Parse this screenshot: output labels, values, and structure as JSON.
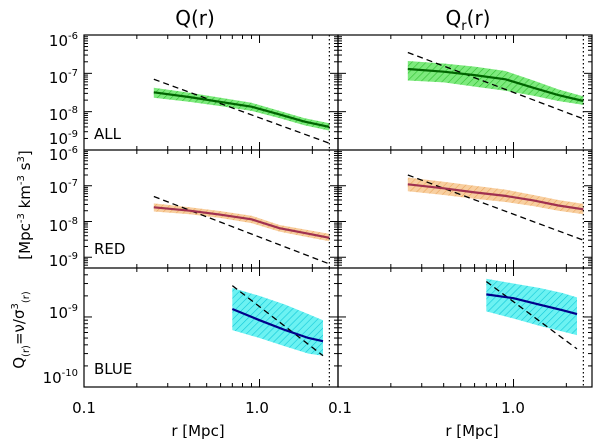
{
  "figure": {
    "column_titles": [
      {
        "base": "Q(r)",
        "sub": ""
      },
      {
        "base": "Q",
        "sub": "r",
        "tail": "(r)"
      }
    ],
    "ylabel_top": {
      "a": "[Mpc",
      "e1": "-3",
      "b": " km",
      "e2": "-3",
      "c": " s",
      "e3": "3",
      "d": "]"
    },
    "ylabel_bottom": {
      "a": "Q",
      "s1": "(r)",
      "b": "=ν/σ",
      "e1": "3",
      "s2": "(r)"
    },
    "xlabel": "r [Mpc]",
    "xtick_labels": [
      "0.1",
      "1.0"
    ],
    "ytick_labels": {
      "row1": [
        {
          "base": "10",
          "exp": "-6"
        },
        {
          "base": "10",
          "exp": "-7"
        },
        {
          "base": "10",
          "exp": "-8"
        },
        {
          "base": "10",
          "exp": "-9"
        }
      ],
      "row2": [
        {
          "base": "10",
          "exp": "-6"
        },
        {
          "base": "10",
          "exp": "-7"
        },
        {
          "base": "10",
          "exp": "-8"
        },
        {
          "base": "10",
          "exp": "-9"
        }
      ],
      "row3": [
        {
          "base": "10",
          "exp": "-9"
        },
        {
          "base": "10",
          "exp": "-10"
        }
      ]
    },
    "row_labels": [
      "ALL",
      "RED",
      "BLUE"
    ]
  },
  "chart_data": [
    {
      "type": "line",
      "panel": "ALL / Q(r)",
      "xscale": "log",
      "yscale": "log",
      "xlim": [
        0.1,
        2.8
      ],
      "ylim": [
        1e-09,
        1e-06
      ],
      "vline": 2.5,
      "band_color": "#4cd94c",
      "line_color": "#006400",
      "x": [
        0.25,
        0.4,
        0.6,
        0.9,
        1.3,
        1.8,
        2.5
      ],
      "y": [
        3.2e-08,
        2.4e-08,
        1.8e-08,
        1.35e-08,
        8.5e-09,
        5.5e-09,
        4e-09
      ],
      "band_low": [
        2.3e-08,
        1.8e-08,
        1.4e-08,
        1.05e-08,
        6.8e-09,
        4.4e-09,
        3.2e-09
      ],
      "band_high": [
        4.2e-08,
        3.1e-08,
        2.3e-08,
        1.7e-08,
        1.05e-08,
        6.8e-09,
        5e-09
      ],
      "fit_x": [
        0.25,
        2.5
      ],
      "fit_y": [
        7e-08,
        1.5e-09
      ]
    },
    {
      "type": "line",
      "panel": "ALL / Qr(r)",
      "xscale": "log",
      "yscale": "log",
      "xlim": [
        0.1,
        2.8
      ],
      "ylim": [
        1e-09,
        1e-06
      ],
      "vline": 2.5,
      "band_color": "#4cd94c",
      "line_color": "#006400",
      "x": [
        0.25,
        0.4,
        0.6,
        0.9,
        1.3,
        1.8,
        2.5
      ],
      "y": [
        1.3e-07,
        1.1e-07,
        9e-08,
        7e-08,
        4.2e-08,
        2.7e-08,
        1.9e-08
      ],
      "band_low": [
        6.5e-08,
        5.8e-08,
        4.5e-08,
        3.5e-08,
        2.6e-08,
        1.9e-08,
        1.5e-08
      ],
      "band_high": [
        2.1e-07,
        1.8e-07,
        1.5e-07,
        1.15e-07,
        6.5e-08,
        3.8e-08,
        2.5e-08
      ],
      "fit_x": [
        0.25,
        2.5
      ],
      "fit_y": [
        3.5e-07,
        6.5e-09
      ]
    },
    {
      "type": "line",
      "panel": "RED / Q(r)",
      "xscale": "log",
      "yscale": "log",
      "xlim": [
        0.1,
        2.8
      ],
      "ylim": [
        5e-10,
        1e-06
      ],
      "vline": 2.5,
      "band_color": "#f5c08a",
      "line_color": "#a03050",
      "x": [
        0.25,
        0.4,
        0.6,
        0.9,
        1.3,
        1.8,
        2.5
      ],
      "y": [
        2.5e-08,
        2e-08,
        1.55e-08,
        1.15e-08,
        6.5e-09,
        4.8e-09,
        3.5e-09
      ],
      "band_low": [
        1.9e-08,
        1.6e-08,
        1.25e-08,
        9e-09,
        5.2e-09,
        3.8e-09,
        2.8e-09
      ],
      "band_high": [
        3.2e-08,
        2.5e-08,
        1.95e-08,
        1.45e-08,
        8e-09,
        6e-09,
        4.5e-09
      ],
      "fit_x": [
        0.25,
        2.5
      ],
      "fit_y": [
        5e-08,
        6.5e-10
      ]
    },
    {
      "type": "line",
      "panel": "RED / Qr(r)",
      "xscale": "log",
      "yscale": "log",
      "xlim": [
        0.1,
        2.8
      ],
      "ylim": [
        5e-10,
        1e-06
      ],
      "vline": 2.5,
      "band_color": "#f5c08a",
      "line_color": "#a03050",
      "x": [
        0.25,
        0.4,
        0.6,
        0.9,
        1.3,
        1.8,
        2.5
      ],
      "y": [
        1.1e-07,
        8.5e-08,
        6.5e-08,
        5.2e-08,
        3.9e-08,
        2.8e-08,
        2.2e-08
      ],
      "band_low": [
        7e-08,
        5.5e-08,
        4.3e-08,
        3.5e-08,
        2.7e-08,
        2e-08,
        1.6e-08
      ],
      "band_high": [
        1.7e-07,
        1.3e-07,
        1e-07,
        7.8e-08,
        5.5e-08,
        4e-08,
        3.1e-08
      ],
      "fit_x": [
        0.25,
        2.5
      ],
      "fit_y": [
        2e-07,
        3e-09
      ]
    },
    {
      "type": "line",
      "panel": "BLUE / Q(r)",
      "xscale": "log",
      "yscale": "log",
      "xlim": [
        0.1,
        2.8
      ],
      "ylim": [
        1e-10,
        5e-09
      ],
      "vline": 2.5,
      "band_color": "#22e8e8",
      "line_color": "#00008b",
      "x": [
        0.7,
        1.0,
        1.4,
        1.9,
        2.3
      ],
      "y": [
        1.3e-09,
        9e-10,
        6.5e-10,
        5e-10,
        4.5e-10
      ],
      "band_low": [
        6.5e-10,
        5e-10,
        3.8e-10,
        3e-10,
        2.8e-10
      ],
      "band_high": [
        2.6e-09,
        2e-09,
        1.5e-09,
        1.1e-09,
        9e-10
      ],
      "fit_x": [
        0.7,
        2.3
      ],
      "fit_y": [
        2.8e-09,
        2.8e-10
      ]
    },
    {
      "type": "line",
      "panel": "BLUE / Qr(r)",
      "xscale": "log",
      "yscale": "log",
      "xlim": [
        0.1,
        2.8
      ],
      "ylim": [
        1e-10,
        5e-09
      ],
      "vline": 2.5,
      "band_color": "#22e8e8",
      "line_color": "#00008b",
      "x": [
        0.7,
        1.0,
        1.4,
        1.9,
        2.3
      ],
      "y": [
        2.1e-09,
        1.85e-09,
        1.5e-09,
        1.25e-09,
        1.1e-09
      ],
      "band_low": [
        1.2e-09,
        9.5e-10,
        7.5e-10,
        6.2e-10,
        5.5e-10
      ],
      "band_high": [
        3.5e-09,
        3e-09,
        2.6e-09,
        2.2e-09,
        1.9e-09
      ],
      "fit_x": [
        0.7,
        2.3
      ],
      "fit_y": [
        3.2e-09,
        3.5e-10
      ]
    }
  ]
}
